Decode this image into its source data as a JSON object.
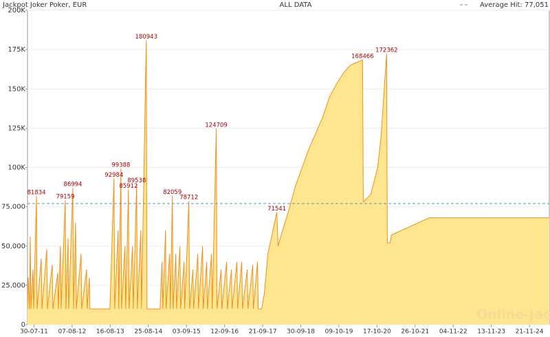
{
  "chart_data": {
    "type": "area",
    "title": "Jackpot Joker Poker, EUR",
    "subtitle": "ALL DATA",
    "watermark": "Online-Jackpots.biz",
    "grid": true,
    "x": [
      "27-05-11",
      "03-06-11",
      "16-06-11",
      "23-06-11",
      "30-06-11",
      "20-07-11",
      "27-07-11",
      "23-08-11",
      "29-08-11",
      "09-10-11",
      "16-10-11",
      "02-12-11",
      "08-12-11",
      "25-01-12",
      "31-01-12",
      "19-03-12",
      "25-03-12",
      "14-04-12",
      "21-04-12",
      "01-06-12",
      "07-06-12",
      "28-06-12",
      "04-07-12",
      "14-08-12",
      "21-08-12",
      "10-09-12",
      "17-09-12",
      "03-11-12",
      "09-11-12",
      "27-12-12",
      "02-01-13",
      "23-01-13",
      "29-01-13",
      "13-08-13",
      "22-09-13",
      "29-09-13",
      "02-11-13",
      "08-11-13",
      "29-11-13",
      "05-12-13",
      "08-01-14",
      "15-01-14",
      "11-02-14",
      "17-02-14",
      "23-03-14",
      "30-03-14",
      "03-05-14",
      "09-05-14",
      "12-06-14",
      "19-06-14",
      "05-08-14",
      "12-08-14",
      "18-12-14",
      "07-01-15",
      "14-01-15",
      "10-02-15",
      "16-02-15",
      "22-03-15",
      "29-03-15",
      "18-04-15",
      "25-04-15",
      "22-05-15",
      "29-05-15",
      "01-07-15",
      "08-07-15",
      "11-08-15",
      "17-08-15",
      "27-09-15",
      "04-10-15",
      "06-11-15",
      "13-11-15",
      "24-12-15",
      "30-12-15",
      "09-02-16",
      "15-02-16",
      "20-03-16",
      "27-03-16",
      "06-05-16",
      "13-05-16",
      "22-06-16",
      "29-06-16",
      "09-08-16",
      "15-08-16",
      "02-10-16",
      "08-10-16",
      "18-11-16",
      "24-11-16",
      "11-01-17",
      "17-01-17",
      "27-02-17",
      "06-03-17",
      "22-04-17",
      "29-04-17",
      "15-06-17",
      "21-06-17",
      "01-08-17",
      "08-08-17",
      "10-09-17",
      "07-10-17",
      "10-11-17",
      "14-12-17",
      "16-01-18",
      "06-02-18",
      "19-02-18",
      "25-03-18",
      "31-05-18",
      "07-08-18",
      "13-10-18",
      "19-12-18",
      "25-02-19",
      "03-05-19",
      "09-07-19",
      "15-09-19",
      "21-11-19",
      "28-01-20",
      "28-05-20",
      "04-06-20",
      "17-08-20",
      "23-10-20",
      "26-11-20",
      "06-01-21",
      "19-01-21",
      "26-01-21",
      "22-02-21",
      "07-03-21",
      "13-03-22",
      "04-06-25"
    ],
    "series": [
      {
        "color": "#f39019",
        "fill": "#fde68f",
        "values": [
          10000,
          30000,
          10000,
          56000,
          10000,
          35000,
          10000,
          81834,
          10000,
          42000,
          10000,
          48000,
          10000,
          38000,
          10000,
          33000,
          10000,
          50000,
          10000,
          79159,
          10000,
          55000,
          10000,
          86994,
          10000,
          65000,
          10000,
          45000,
          10000,
          35000,
          10000,
          30000,
          10000,
          10000,
          92984,
          10000,
          60000,
          10000,
          99388,
          10000,
          50000,
          10000,
          85912,
          10000,
          50000,
          10000,
          89538,
          10000,
          60000,
          10000,
          180943,
          10000,
          10000,
          40000,
          10000,
          60000,
          10000,
          45000,
          10000,
          82059,
          10000,
          45000,
          10000,
          50000,
          10000,
          40000,
          10000,
          78712,
          10000,
          35000,
          10000,
          45000,
          10000,
          50000,
          10000,
          40000,
          10000,
          45000,
          10000,
          124709,
          10000,
          35000,
          10000,
          40000,
          10000,
          35000,
          10000,
          40000,
          10000,
          40000,
          10000,
          35000,
          10000,
          38000,
          10000,
          40000,
          10000,
          10000,
          20000,
          45000,
          55000,
          65000,
          71541,
          50000,
          58000,
          72000,
          88000,
          100000,
          112000,
          122000,
          132000,
          145000,
          153000,
          160000,
          165000,
          168466,
          78000,
          83000,
          100000,
          120000,
          160000,
          172362,
          52000,
          52000,
          57000,
          68000,
          68000
        ],
        "label_indices": [
          7,
          19,
          23,
          34,
          38,
          42,
          46,
          50,
          59,
          67,
          79,
          102,
          115,
          121
        ]
      }
    ],
    "average_line": {
      "label": "Average Hit: 77,051",
      "value": 77051,
      "color": "#4a9fb0"
    },
    "xlim": [
      "27-05-11",
      "04-06-25"
    ],
    "xticks": [
      "30-07-11",
      "07-08-12",
      "16-08-13",
      "25-08-14",
      "03-09-15",
      "12-09-16",
      "21-09-17",
      "30-09-18",
      "09-10-19",
      "17-10-20",
      "26-10-21",
      "04-11-22",
      "13-11-23",
      "21-11-24"
    ],
    "ylim": [
      0,
      200000
    ],
    "yticks": [
      0,
      {
        "value": 25000,
        "label": "25,000"
      },
      {
        "value": 50000,
        "label": "50,000"
      },
      {
        "value": 75000,
        "label": "75,000"
      },
      {
        "value": 100000,
        "label": "100K"
      },
      {
        "value": 125000,
        "label": "125K"
      },
      {
        "value": 150000,
        "label": "150K"
      },
      {
        "value": 175000,
        "label": "175K"
      },
      {
        "value": 200000,
        "label": "200K"
      }
    ]
  }
}
